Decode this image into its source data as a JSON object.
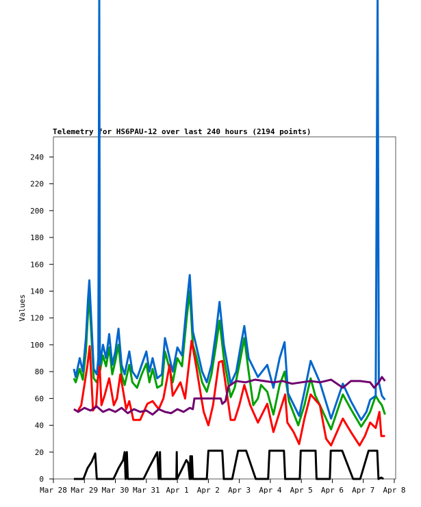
{
  "chart_data": {
    "type": "line",
    "title": "Telemetry for HS6PAU-12 over last 240 hours (2194 points)",
    "xlabel": "",
    "ylabel": "Values",
    "xlim": [
      0,
      11
    ],
    "ylim": [
      0,
      255
    ],
    "x_unit": "days since Mar 28",
    "x_ticks": [
      {
        "value": 0,
        "label": "Mar 28"
      },
      {
        "value": 1,
        "label": "Mar 29"
      },
      {
        "value": 2,
        "label": "Mar 30"
      },
      {
        "value": 3,
        "label": "Mar 31"
      },
      {
        "value": 4,
        "label": "Apr 1"
      },
      {
        "value": 5,
        "label": "Apr 2"
      },
      {
        "value": 6,
        "label": "Apr 3"
      },
      {
        "value": 7,
        "label": "Apr 4"
      },
      {
        "value": 8,
        "label": "Apr 5"
      },
      {
        "value": 9,
        "label": "Apr 6"
      },
      {
        "value": 10,
        "label": "Apr 7"
      },
      {
        "value": 11,
        "label": "Apr 8"
      }
    ],
    "y_ticks": [
      0,
      20,
      40,
      60,
      80,
      100,
      120,
      140,
      160,
      180,
      200,
      220,
      240
    ],
    "grid": false,
    "series": [
      {
        "name": "green",
        "color": "#00a000",
        "points": [
          [
            0.66,
            75
          ],
          [
            0.72,
            72
          ],
          [
            0.85,
            82
          ],
          [
            0.95,
            74
          ],
          [
            1.05,
            95
          ],
          [
            1.12,
            125
          ],
          [
            1.16,
            135
          ],
          [
            1.22,
            110
          ],
          [
            1.3,
            75
          ],
          [
            1.4,
            72
          ],
          [
            1.5,
            80
          ],
          [
            1.6,
            92
          ],
          [
            1.7,
            84
          ],
          [
            1.8,
            98
          ],
          [
            1.9,
            78
          ],
          [
            2.0,
            88
          ],
          [
            2.1,
            100
          ],
          [
            2.2,
            78
          ],
          [
            2.3,
            70
          ],
          [
            2.45,
            85
          ],
          [
            2.55,
            72
          ],
          [
            2.7,
            68
          ],
          [
            2.85,
            78
          ],
          [
            3.0,
            86
          ],
          [
            3.1,
            72
          ],
          [
            3.2,
            82
          ],
          [
            3.35,
            68
          ],
          [
            3.5,
            70
          ],
          [
            3.6,
            95
          ],
          [
            3.75,
            82
          ],
          [
            3.85,
            72
          ],
          [
            4.0,
            90
          ],
          [
            4.15,
            84
          ],
          [
            4.3,
            120
          ],
          [
            4.4,
            140
          ],
          [
            4.5,
            100
          ],
          [
            4.6,
            92
          ],
          [
            4.8,
            72
          ],
          [
            4.95,
            65
          ],
          [
            5.1,
            78
          ],
          [
            5.25,
            100
          ],
          [
            5.36,
            118
          ],
          [
            5.5,
            90
          ],
          [
            5.72,
            61
          ],
          [
            5.85,
            68
          ],
          [
            6.0,
            85
          ],
          [
            6.16,
            105
          ],
          [
            6.3,
            80
          ],
          [
            6.45,
            55
          ],
          [
            6.6,
            60
          ],
          [
            6.7,
            70
          ],
          [
            6.9,
            65
          ],
          [
            7.1,
            48
          ],
          [
            7.3,
            70
          ],
          [
            7.46,
            80
          ],
          [
            7.6,
            58
          ],
          [
            7.9,
            40
          ],
          [
            8.1,
            55
          ],
          [
            8.3,
            75
          ],
          [
            8.45,
            62
          ],
          [
            8.6,
            55
          ],
          [
            8.96,
            37
          ],
          [
            9.34,
            63
          ],
          [
            9.6,
            52
          ],
          [
            9.93,
            39
          ],
          [
            10.1,
            45
          ],
          [
            10.22,
            50
          ],
          [
            10.4,
            62
          ],
          [
            10.5,
            58
          ],
          [
            10.6,
            55
          ],
          [
            10.7,
            48
          ]
        ]
      },
      {
        "name": "red",
        "color": "#ff0000",
        "points": [
          [
            0.8,
            51
          ],
          [
            0.9,
            55
          ],
          [
            1.0,
            70
          ],
          [
            1.1,
            85
          ],
          [
            1.17,
            99
          ],
          [
            1.28,
            51
          ],
          [
            1.38,
            55
          ],
          [
            1.48,
            90
          ],
          [
            1.55,
            55
          ],
          [
            1.65,
            62
          ],
          [
            1.8,
            75
          ],
          [
            1.95,
            55
          ],
          [
            2.05,
            60
          ],
          [
            2.16,
            78
          ],
          [
            2.35,
            52
          ],
          [
            2.45,
            58
          ],
          [
            2.58,
            44
          ],
          [
            2.8,
            44
          ],
          [
            3.03,
            56
          ],
          [
            3.2,
            58
          ],
          [
            3.4,
            52
          ],
          [
            3.55,
            60
          ],
          [
            3.75,
            85
          ],
          [
            3.85,
            62
          ],
          [
            4.1,
            72
          ],
          [
            4.25,
            60
          ],
          [
            4.46,
            103
          ],
          [
            4.6,
            85
          ],
          [
            4.74,
            65
          ],
          [
            4.85,
            50
          ],
          [
            5.0,
            40
          ],
          [
            5.15,
            55
          ],
          [
            5.34,
            87
          ],
          [
            5.45,
            88
          ],
          [
            5.72,
            44
          ],
          [
            5.85,
            44
          ],
          [
            6.0,
            55
          ],
          [
            6.16,
            70
          ],
          [
            6.35,
            55
          ],
          [
            6.6,
            42
          ],
          [
            6.9,
            56
          ],
          [
            7.1,
            35
          ],
          [
            7.3,
            50
          ],
          [
            7.48,
            63
          ],
          [
            7.55,
            42
          ],
          [
            7.75,
            35
          ],
          [
            7.93,
            26
          ],
          [
            8.1,
            45
          ],
          [
            8.3,
            63
          ],
          [
            8.6,
            55
          ],
          [
            8.8,
            30
          ],
          [
            8.96,
            25
          ],
          [
            9.34,
            45
          ],
          [
            9.6,
            35
          ],
          [
            9.88,
            25
          ],
          [
            10.05,
            32
          ],
          [
            10.22,
            42
          ],
          [
            10.4,
            38
          ],
          [
            10.52,
            50
          ],
          [
            10.58,
            32
          ],
          [
            10.7,
            32
          ]
        ]
      },
      {
        "name": "blue",
        "color": "#0066cc",
        "points": [
          [
            0.66,
            82
          ],
          [
            0.72,
            76
          ],
          [
            0.85,
            90
          ],
          [
            0.95,
            80
          ],
          [
            1.05,
            105
          ],
          [
            1.12,
            135
          ],
          [
            1.16,
            148
          ],
          [
            1.22,
            120
          ],
          [
            1.3,
            82
          ],
          [
            1.4,
            78
          ],
          [
            1.45,
            90
          ],
          [
            1.48,
            360
          ],
          [
            1.5,
            85
          ],
          [
            1.6,
            100
          ],
          [
            1.7,
            90
          ],
          [
            1.8,
            108
          ],
          [
            1.9,
            85
          ],
          [
            2.0,
            95
          ],
          [
            2.1,
            112
          ],
          [
            2.2,
            85
          ],
          [
            2.3,
            78
          ],
          [
            2.45,
            95
          ],
          [
            2.55,
            80
          ],
          [
            2.7,
            75
          ],
          [
            2.85,
            85
          ],
          [
            3.0,
            95
          ],
          [
            3.1,
            80
          ],
          [
            3.2,
            90
          ],
          [
            3.35,
            75
          ],
          [
            3.5,
            78
          ],
          [
            3.6,
            105
          ],
          [
            3.75,
            90
          ],
          [
            3.85,
            80
          ],
          [
            4.0,
            98
          ],
          [
            4.15,
            92
          ],
          [
            4.3,
            130
          ],
          [
            4.4,
            152
          ],
          [
            4.5,
            110
          ],
          [
            4.6,
            100
          ],
          [
            4.8,
            80
          ],
          [
            4.95,
            72
          ],
          [
            5.1,
            85
          ],
          [
            5.25,
            110
          ],
          [
            5.36,
            132
          ],
          [
            5.5,
            100
          ],
          [
            5.72,
            71
          ],
          [
            5.9,
            80
          ],
          [
            6.05,
            100
          ],
          [
            6.16,
            114
          ],
          [
            6.3,
            90
          ],
          [
            6.6,
            76
          ],
          [
            6.9,
            85
          ],
          [
            7.1,
            68
          ],
          [
            7.3,
            90
          ],
          [
            7.46,
            102
          ],
          [
            7.57,
            64
          ],
          [
            7.93,
            47
          ],
          [
            8.1,
            65
          ],
          [
            8.3,
            88
          ],
          [
            8.45,
            80
          ],
          [
            8.6,
            72
          ],
          [
            8.96,
            45
          ],
          [
            9.34,
            71
          ],
          [
            9.6,
            58
          ],
          [
            9.93,
            44
          ],
          [
            10.1,
            50
          ],
          [
            10.22,
            59
          ],
          [
            10.4,
            62
          ],
          [
            10.46,
            360
          ],
          [
            10.5,
            72
          ],
          [
            10.6,
            62
          ],
          [
            10.7,
            59
          ]
        ]
      },
      {
        "name": "purple",
        "color": "#6e006e",
        "points": [
          [
            0.66,
            52
          ],
          [
            0.8,
            50
          ],
          [
            1.0,
            53
          ],
          [
            1.2,
            51
          ],
          [
            1.4,
            54
          ],
          [
            1.6,
            50
          ],
          [
            1.8,
            52
          ],
          [
            2.0,
            50
          ],
          [
            2.2,
            53
          ],
          [
            2.4,
            49
          ],
          [
            2.6,
            52
          ],
          [
            2.8,
            50
          ],
          [
            3.0,
            51
          ],
          [
            3.2,
            48
          ],
          [
            3.4,
            52
          ],
          [
            3.6,
            50
          ],
          [
            3.8,
            49
          ],
          [
            4.0,
            52
          ],
          [
            4.2,
            50
          ],
          [
            4.4,
            53
          ],
          [
            4.5,
            52
          ],
          [
            4.55,
            60
          ],
          [
            4.8,
            60
          ],
          [
            5.1,
            60
          ],
          [
            5.4,
            60
          ],
          [
            5.45,
            56
          ],
          [
            5.55,
            58
          ],
          [
            5.65,
            69
          ],
          [
            5.9,
            73
          ],
          [
            6.2,
            72
          ],
          [
            6.5,
            74
          ],
          [
            6.8,
            73
          ],
          [
            7.1,
            72
          ],
          [
            7.4,
            73
          ],
          [
            7.7,
            71
          ],
          [
            8.0,
            72
          ],
          [
            8.3,
            73
          ],
          [
            8.6,
            72
          ],
          [
            8.96,
            74
          ],
          [
            9.34,
            68
          ],
          [
            9.6,
            73
          ],
          [
            9.9,
            73
          ],
          [
            10.22,
            72
          ],
          [
            10.35,
            68
          ],
          [
            10.5,
            72
          ],
          [
            10.6,
            76
          ],
          [
            10.7,
            73
          ]
        ]
      },
      {
        "name": "black",
        "color": "#000000",
        "points": [
          [
            0.66,
            0
          ],
          [
            0.97,
            0
          ],
          [
            1.1,
            8
          ],
          [
            1.24,
            13
          ],
          [
            1.35,
            19
          ],
          [
            1.4,
            0
          ],
          [
            1.94,
            0
          ],
          [
            2.1,
            8
          ],
          [
            2.25,
            14
          ],
          [
            2.3,
            20
          ],
          [
            2.33,
            0
          ],
          [
            2.37,
            20
          ],
          [
            2.4,
            0
          ],
          [
            2.91,
            0
          ],
          [
            3.1,
            9
          ],
          [
            3.35,
            20
          ],
          [
            3.4,
            0
          ],
          [
            3.44,
            20
          ],
          [
            3.46,
            0
          ],
          [
            3.97,
            0
          ],
          [
            3.98,
            20
          ],
          [
            3.99,
            0
          ],
          [
            4.1,
            5
          ],
          [
            4.29,
            14
          ],
          [
            4.35,
            12
          ],
          [
            4.4,
            0
          ],
          [
            4.42,
            17
          ],
          [
            4.44,
            0
          ],
          [
            4.47,
            17
          ],
          [
            4.5,
            0
          ],
          [
            4.95,
            0
          ],
          [
            5.0,
            21
          ],
          [
            5.45,
            21
          ],
          [
            5.5,
            0
          ],
          [
            5.77,
            0
          ],
          [
            5.96,
            21
          ],
          [
            6.22,
            21
          ],
          [
            6.53,
            0
          ],
          [
            6.93,
            0
          ],
          [
            6.97,
            21
          ],
          [
            7.44,
            21
          ],
          [
            7.48,
            0
          ],
          [
            7.95,
            0
          ],
          [
            7.98,
            21
          ],
          [
            8.46,
            21
          ],
          [
            8.49,
            0
          ],
          [
            8.92,
            0
          ],
          [
            8.95,
            21
          ],
          [
            9.32,
            21
          ],
          [
            9.67,
            0
          ],
          [
            9.9,
            0
          ],
          [
            10.17,
            21
          ],
          [
            10.45,
            21
          ],
          [
            10.49,
            0
          ],
          [
            10.58,
            1
          ],
          [
            10.65,
            0
          ]
        ]
      }
    ]
  }
}
